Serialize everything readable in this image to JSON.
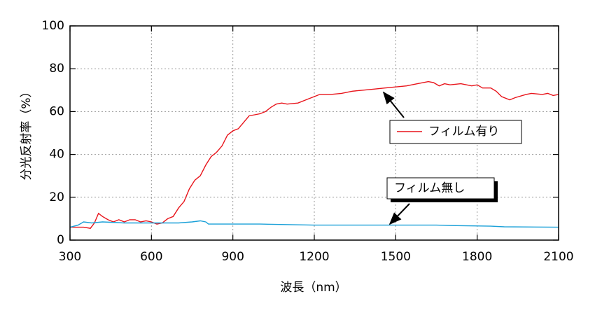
{
  "chart_data": {
    "type": "line",
    "xlabel": "波長（nm）",
    "ylabel": "分光反射率（%）",
    "xlim": [
      300,
      2100
    ],
    "xticks": [
      300,
      600,
      900,
      1200,
      1500,
      1800,
      2100
    ],
    "ylim": [
      0,
      100
    ],
    "yticks": [
      0,
      20,
      40,
      60,
      80,
      100
    ],
    "grid": true,
    "series": [
      {
        "name": "フィルム有り",
        "color": "#e8141b",
        "x": [
          300,
          350,
          375,
          390,
          405,
          420,
          440,
          460,
          480,
          500,
          520,
          540,
          560,
          580,
          600,
          620,
          640,
          660,
          680,
          700,
          720,
          740,
          760,
          780,
          800,
          820,
          840,
          860,
          880,
          900,
          920,
          940,
          960,
          980,
          1000,
          1020,
          1040,
          1060,
          1080,
          1100,
          1140,
          1180,
          1200,
          1220,
          1260,
          1300,
          1340,
          1380,
          1420,
          1460,
          1500,
          1540,
          1580,
          1620,
          1640,
          1660,
          1680,
          1700,
          1740,
          1780,
          1800,
          1820,
          1850,
          1870,
          1890,
          1920,
          1940,
          1980,
          2000,
          2040,
          2060,
          2080,
          2100
        ],
        "values": [
          6,
          6,
          5.5,
          8,
          12.5,
          11,
          9.5,
          8.5,
          9.5,
          8.5,
          9.5,
          9.5,
          8.5,
          9,
          8.5,
          7.5,
          8,
          10,
          11,
          15,
          18,
          24,
          28,
          30,
          35,
          39,
          41,
          44,
          49,
          51,
          52,
          55,
          58,
          58.5,
          59,
          60,
          62,
          63.5,
          64,
          63.5,
          64,
          66,
          67,
          68,
          68,
          68.5,
          69.5,
          70,
          70.5,
          71,
          71.5,
          72,
          73,
          74,
          73.5,
          72,
          73,
          72.5,
          73,
          72,
          72.5,
          71,
          71,
          69.5,
          67,
          65.5,
          66.5,
          68,
          68.5,
          68,
          68.5,
          67.5,
          68
        ]
      },
      {
        "name": "フィルム無し",
        "color": "#1aa0d8",
        "x": [
          300,
          330,
          350,
          380,
          420,
          500,
          600,
          700,
          750,
          780,
          800,
          810,
          1000,
          1200,
          1500,
          1650,
          1700,
          1850,
          1900,
          2100
        ],
        "values": [
          6,
          7,
          8.5,
          8,
          8.5,
          8,
          8,
          8,
          8.5,
          9,
          8.5,
          7.5,
          7.5,
          7,
          7,
          7,
          6.8,
          6.5,
          6.2,
          6
        ]
      }
    ]
  }
}
